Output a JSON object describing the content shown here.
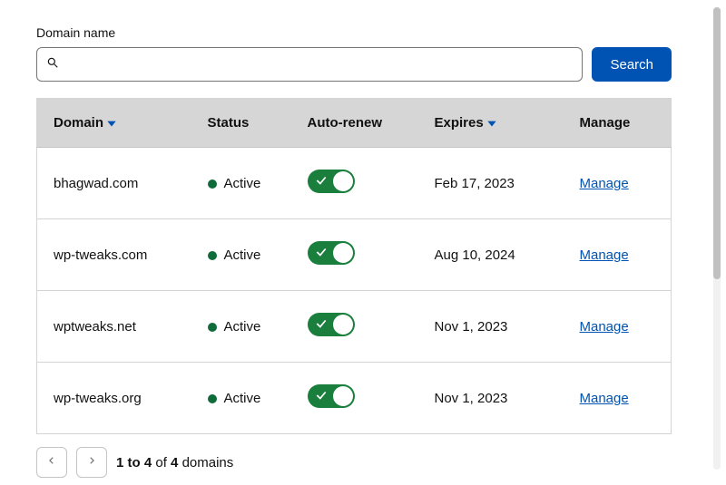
{
  "search": {
    "label": "Domain name",
    "button": "Search",
    "placeholder": ""
  },
  "colors": {
    "primary": "#0053b3",
    "toggle_on": "#1a7f3c",
    "status_active": "#0f6b3a",
    "header_bg": "#d6d6d6",
    "border": "#d4d4d4",
    "sort_caret": "#0053b3"
  },
  "columns": {
    "domain": "Domain",
    "status": "Status",
    "auto_renew": "Auto-renew",
    "expires": "Expires",
    "manage": "Manage"
  },
  "rows": [
    {
      "domain": "bhagwad.com",
      "status": "Active",
      "auto_renew": true,
      "expires": "Feb 17, 2023",
      "manage": "Manage"
    },
    {
      "domain": "wp-tweaks.com",
      "status": "Active",
      "auto_renew": true,
      "expires": "Aug 10, 2024",
      "manage": "Manage"
    },
    {
      "domain": "wptweaks.net",
      "status": "Active",
      "auto_renew": true,
      "expires": "Nov 1, 2023",
      "manage": "Manage"
    },
    {
      "domain": "wp-tweaks.org",
      "status": "Active",
      "auto_renew": true,
      "expires": "Nov 1, 2023",
      "manage": "Manage"
    }
  ],
  "pagination": {
    "range": "1 to 4",
    "of_word": "of",
    "total": "4",
    "unit": "domains"
  }
}
